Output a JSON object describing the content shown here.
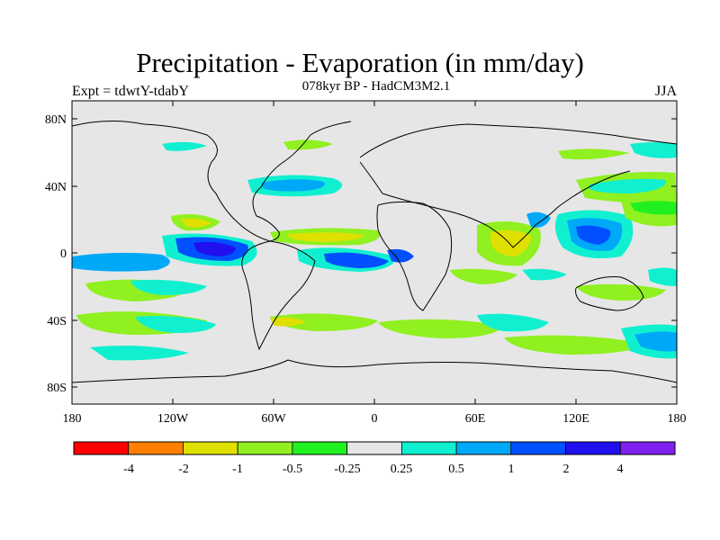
{
  "title": "Precipitation - Evaporation (in mm/day)",
  "subtitle": "078kyr BP - HadCM3M2.1",
  "left_label": "Expt = tdwtY-tdabY",
  "right_label": "JJA",
  "lat_ticks": [
    "80N",
    "40N",
    "0",
    "40S",
    "80S"
  ],
  "lon_ticks": [
    "180",
    "120W",
    "60W",
    "0",
    "60E",
    "120E",
    "180"
  ],
  "colorbar": {
    "colors": [
      "#ff0000",
      "#ff8000",
      "#e0e000",
      "#90f020",
      "#20f020",
      "#e6e6e6",
      "#10f0d0",
      "#00a8f8",
      "#0050ff",
      "#2010f0",
      "#8020f0"
    ],
    "labels": [
      "-4",
      "-2",
      "-1",
      "-0.5",
      "-0.25",
      "0.25",
      "0.5",
      "1",
      "2",
      "4"
    ]
  },
  "colors": {
    "ocean_bg": "#e6e6e6",
    "coast": "#000000"
  }
}
